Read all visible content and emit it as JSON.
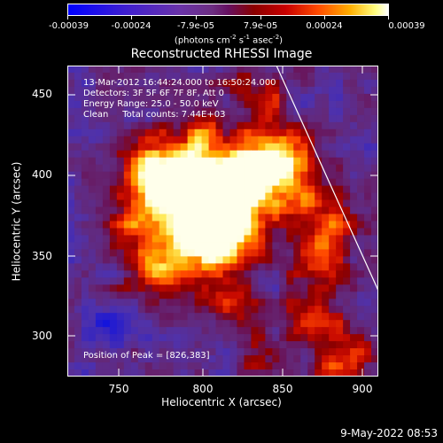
{
  "colorbar": {
    "tick_labels": [
      "-0.00039",
      "-0.00024",
      "-7.9e-05",
      "7.9e-05",
      "0.00024",
      "0.00039"
    ],
    "unit_prefix": "(photons cm",
    "unit_exp1": "-2",
    "unit_mid1": " s",
    "unit_exp2": "-1",
    "unit_mid2": " asec",
    "unit_exp3": "-2",
    "unit_suffix": ")"
  },
  "plot": {
    "title": "Reconstructed RHESSI Image",
    "xlabel": "Heliocentric X (arcsec)",
    "ylabel": "Heliocentric Y (arcsec)",
    "x_ticks": [
      "750",
      "800",
      "850",
      "900"
    ],
    "y_ticks": [
      "300",
      "350",
      "400",
      "450"
    ],
    "info_lines": [
      "13-Mar-2012 16:44:24.000 to 16:50:24.000",
      "Detectors: 3F 5F 6F 7F 8F, Att 0",
      "Energy Range: 25.0 - 50.0 keV",
      "Clean     Total counts: 7.44E+03"
    ],
    "peak_text": "Position of Peak = [826,383]"
  },
  "timestamp": "9-May-2022 08:53"
}
